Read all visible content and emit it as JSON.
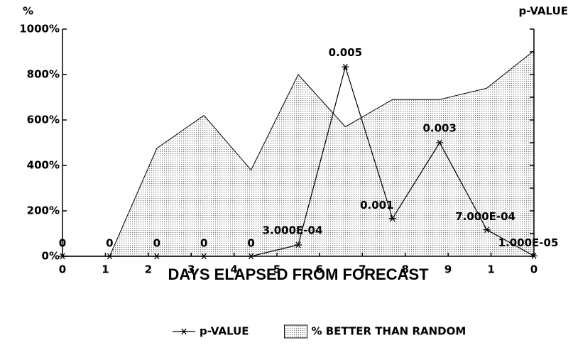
{
  "chart_data": {
    "type": "line",
    "x": [
      0,
      1,
      2,
      3,
      4,
      5,
      6,
      7,
      8,
      9,
      10
    ],
    "xlim": [
      0,
      10
    ],
    "xticks": [
      0,
      {
        "value": 0.91,
        "label": "1"
      },
      {
        "value": 1.82,
        "label": "2"
      },
      {
        "value": 2.73,
        "label": "3"
      },
      {
        "value": 3.64,
        "label": "4"
      },
      {
        "value": 4.55,
        "label": "5"
      },
      {
        "value": 5.45,
        "label": "6"
      },
      {
        "value": 6.36,
        "label": "7"
      },
      {
        "value": 7.27,
        "label": "8"
      },
      {
        "value": 8.18,
        "label": "9"
      },
      {
        "value": 9.09,
        "label": "1"
      },
      {
        "value": 10,
        "label": "0"
      }
    ],
    "ylim": [
      0,
      1000
    ],
    "yticks": [
      {
        "value": 0,
        "label": "0%"
      },
      {
        "value": 200,
        "label": "200%"
      },
      {
        "value": 400,
        "label": "400%"
      },
      {
        "value": 600,
        "label": "600%"
      },
      {
        "value": 800,
        "label": "800%"
      },
      {
        "value": 1000,
        "label": "1000%"
      }
    ],
    "y2lim": [
      0,
      0.006
    ],
    "y2ticks": [
      0,
      0.0006,
      0.0012,
      0.0018,
      0.0024,
      0.003,
      0.0036,
      0.0042,
      0.0048,
      0.0054,
      0.006
    ],
    "y_label": "%",
    "y2_label": "p-VALUE",
    "x_label": "DAYS ELAPSED FROM FORECAST",
    "legend": "bottom",
    "series": [
      {
        "name": "p-VALUE",
        "type": "line",
        "axis": "y2",
        "color": "#000000",
        "values": [
          0,
          0,
          0,
          0,
          0,
          0.0003,
          0.005,
          0.001,
          0.003,
          0.0007,
          1e-05
        ],
        "value_labels": [
          "0",
          "0",
          "0",
          "0",
          "0",
          "3.000E-04",
          "0.005",
          "0.001",
          "0.003",
          "7.000E-04",
          "1.000E-05"
        ]
      },
      {
        "name": "% BETTER THAN RANDOM",
        "type": "area",
        "color": "#c8c8c8",
        "values": [
          0,
          0,
          475,
          620,
          380,
          800,
          570,
          690,
          690,
          740,
          905
        ]
      }
    ]
  }
}
